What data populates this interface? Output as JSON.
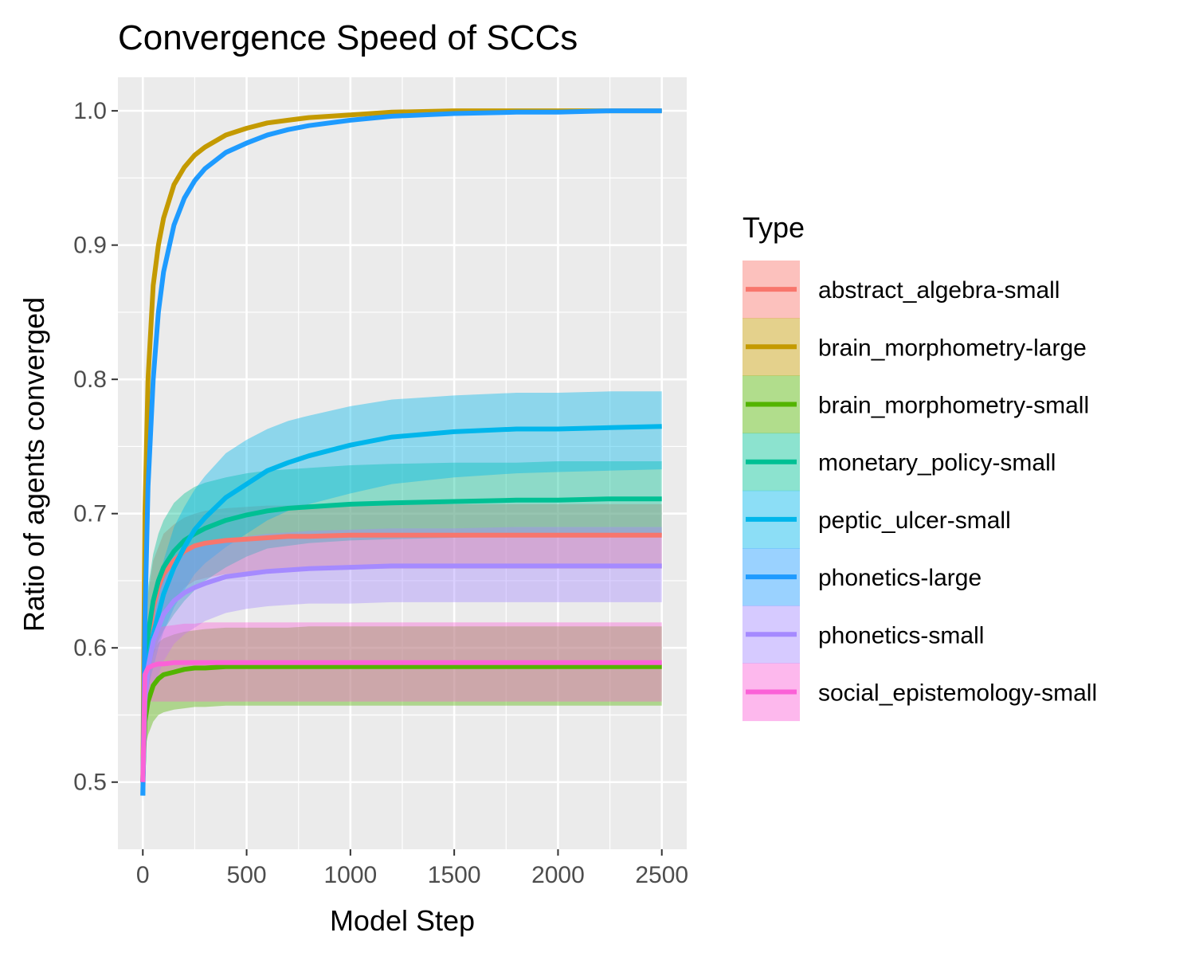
{
  "chart_data": {
    "type": "line",
    "title": "Convergence Speed of SCCs",
    "xlabel": "Model Step",
    "ylabel": "Ratio of agents converged",
    "xlim": [
      -120,
      2620
    ],
    "ylim": [
      0.45,
      1.025
    ],
    "x_ticks": [
      0,
      500,
      1000,
      1500,
      2000,
      2500
    ],
    "y_ticks": [
      0.5,
      0.6,
      0.7,
      0.8,
      0.9,
      1.0
    ],
    "x_tick_labels": [
      "0",
      "500",
      "1000",
      "1500",
      "2000",
      "2500"
    ],
    "y_tick_labels": [
      "0.5",
      "0.6",
      "0.7",
      "0.8",
      "0.9",
      "1.0"
    ],
    "grid": true,
    "legend_title": "Type",
    "legend_position": "right",
    "x": [
      0,
      10,
      25,
      50,
      75,
      100,
      150,
      200,
      250,
      300,
      400,
      500,
      600,
      700,
      800,
      1000,
      1200,
      1500,
      1800,
      2000,
      2250,
      2500
    ],
    "series": [
      {
        "name": "abstract_algebra-small",
        "color": "#F8766D",
        "values": [
          0.5,
          0.57,
          0.6,
          0.63,
          0.645,
          0.655,
          0.665,
          0.672,
          0.676,
          0.678,
          0.68,
          0.681,
          0.682,
          0.683,
          0.683,
          0.684,
          0.684,
          0.684,
          0.684,
          0.684,
          0.684,
          0.684
        ],
        "lower": [
          0.49,
          0.53,
          0.56,
          0.6,
          0.615,
          0.625,
          0.635,
          0.645,
          0.65,
          0.652,
          0.655,
          0.656,
          0.657,
          0.658,
          0.658,
          0.659,
          0.659,
          0.659,
          0.659,
          0.659,
          0.659,
          0.659
        ],
        "upper": [
          0.51,
          0.6,
          0.64,
          0.665,
          0.675,
          0.685,
          0.692,
          0.697,
          0.7,
          0.702,
          0.704,
          0.705,
          0.706,
          0.706,
          0.707,
          0.707,
          0.707,
          0.707,
          0.707,
          0.707,
          0.707,
          0.707
        ]
      },
      {
        "name": "brain_morphometry-large",
        "color": "#C49A00",
        "values": [
          0.5,
          0.7,
          0.8,
          0.87,
          0.9,
          0.92,
          0.945,
          0.958,
          0.967,
          0.973,
          0.982,
          0.987,
          0.991,
          0.993,
          0.995,
          0.997,
          0.999,
          1.0,
          1.0,
          1.0,
          1.0,
          1.0
        ],
        "lower": [
          0.495,
          0.695,
          0.795,
          0.866,
          0.897,
          0.917,
          0.943,
          0.956,
          0.965,
          0.971,
          0.981,
          0.986,
          0.99,
          0.992,
          0.994,
          0.996,
          0.998,
          0.999,
          0.999,
          0.999,
          0.999,
          0.999
        ],
        "upper": [
          0.505,
          0.705,
          0.805,
          0.874,
          0.903,
          0.923,
          0.947,
          0.96,
          0.969,
          0.975,
          0.983,
          0.988,
          0.992,
          0.994,
          0.996,
          0.998,
          1.0,
          1.001,
          1.001,
          1.001,
          1.001,
          1.001
        ]
      },
      {
        "name": "brain_morphometry-small",
        "color": "#53B400",
        "values": [
          0.5,
          0.545,
          0.56,
          0.572,
          0.577,
          0.58,
          0.582,
          0.584,
          0.585,
          0.585,
          0.586,
          0.586,
          0.586,
          0.586,
          0.586,
          0.586,
          0.586,
          0.586,
          0.586,
          0.586,
          0.586,
          0.586
        ],
        "lower": [
          0.49,
          0.525,
          0.535,
          0.545,
          0.55,
          0.552,
          0.554,
          0.555,
          0.556,
          0.556,
          0.557,
          0.557,
          0.557,
          0.557,
          0.557,
          0.557,
          0.557,
          0.557,
          0.557,
          0.557,
          0.557,
          0.557
        ],
        "upper": [
          0.51,
          0.57,
          0.585,
          0.597,
          0.604,
          0.607,
          0.61,
          0.612,
          0.613,
          0.614,
          0.615,
          0.615,
          0.615,
          0.615,
          0.616,
          0.616,
          0.616,
          0.616,
          0.616,
          0.616,
          0.616,
          0.616
        ]
      },
      {
        "name": "monetary_policy-small",
        "color": "#00C094",
        "values": [
          0.5,
          0.58,
          0.61,
          0.635,
          0.65,
          0.66,
          0.672,
          0.68,
          0.685,
          0.689,
          0.695,
          0.699,
          0.702,
          0.704,
          0.705,
          0.707,
          0.708,
          0.709,
          0.71,
          0.71,
          0.711,
          0.711
        ],
        "lower": [
          0.49,
          0.55,
          0.575,
          0.595,
          0.605,
          0.613,
          0.625,
          0.635,
          0.643,
          0.65,
          0.66,
          0.668,
          0.674,
          0.676,
          0.678,
          0.68,
          0.681,
          0.682,
          0.683,
          0.683,
          0.684,
          0.684
        ],
        "upper": [
          0.51,
          0.61,
          0.645,
          0.67,
          0.685,
          0.695,
          0.708,
          0.715,
          0.72,
          0.723,
          0.727,
          0.73,
          0.732,
          0.733,
          0.734,
          0.736,
          0.737,
          0.738,
          0.738,
          0.739,
          0.739,
          0.739
        ]
      },
      {
        "name": "peptic_ulcer-small",
        "color": "#00B6EB",
        "values": [
          0.49,
          0.57,
          0.59,
          0.61,
          0.625,
          0.64,
          0.66,
          0.675,
          0.688,
          0.697,
          0.712,
          0.722,
          0.732,
          0.738,
          0.743,
          0.751,
          0.757,
          0.761,
          0.763,
          0.763,
          0.764,
          0.765
        ],
        "lower": [
          0.485,
          0.55,
          0.57,
          0.585,
          0.6,
          0.612,
          0.63,
          0.643,
          0.655,
          0.663,
          0.675,
          0.685,
          0.695,
          0.702,
          0.707,
          0.715,
          0.722,
          0.727,
          0.73,
          0.731,
          0.732,
          0.733
        ],
        "upper": [
          0.495,
          0.59,
          0.61,
          0.635,
          0.65,
          0.665,
          0.69,
          0.705,
          0.718,
          0.728,
          0.745,
          0.755,
          0.763,
          0.769,
          0.773,
          0.78,
          0.785,
          0.788,
          0.79,
          0.79,
          0.791,
          0.791
        ]
      },
      {
        "name": "phonetics-large",
        "color": "#1E9BFF",
        "values": [
          0.49,
          0.62,
          0.72,
          0.8,
          0.85,
          0.88,
          0.915,
          0.935,
          0.948,
          0.957,
          0.969,
          0.976,
          0.982,
          0.986,
          0.989,
          0.993,
          0.996,
          0.998,
          0.999,
          0.999,
          1.0,
          1.0
        ],
        "lower": [
          0.485,
          0.615,
          0.715,
          0.796,
          0.846,
          0.876,
          0.912,
          0.932,
          0.945,
          0.955,
          0.967,
          0.974,
          0.98,
          0.985,
          0.988,
          0.992,
          0.995,
          0.997,
          0.998,
          0.998,
          0.999,
          0.999
        ],
        "upper": [
          0.495,
          0.625,
          0.725,
          0.804,
          0.854,
          0.884,
          0.918,
          0.938,
          0.951,
          0.959,
          0.971,
          0.978,
          0.984,
          0.987,
          0.99,
          0.994,
          0.997,
          0.999,
          1.0,
          1.0,
          1.001,
          1.001
        ]
      },
      {
        "name": "phonetics-small",
        "color": "#A58AFF",
        "values": [
          0.5,
          0.56,
          0.585,
          0.605,
          0.615,
          0.625,
          0.635,
          0.641,
          0.645,
          0.648,
          0.653,
          0.655,
          0.657,
          0.658,
          0.659,
          0.66,
          0.661,
          0.661,
          0.661,
          0.661,
          0.661,
          0.661
        ],
        "lower": [
          0.49,
          0.53,
          0.55,
          0.57,
          0.58,
          0.59,
          0.603,
          0.61,
          0.615,
          0.62,
          0.626,
          0.629,
          0.631,
          0.632,
          0.633,
          0.633,
          0.634,
          0.634,
          0.634,
          0.634,
          0.634,
          0.634
        ],
        "upper": [
          0.51,
          0.59,
          0.62,
          0.64,
          0.65,
          0.66,
          0.668,
          0.672,
          0.675,
          0.678,
          0.681,
          0.683,
          0.685,
          0.686,
          0.687,
          0.688,
          0.689,
          0.689,
          0.69,
          0.69,
          0.69,
          0.69
        ]
      },
      {
        "name": "social_epistemology-small",
        "color": "#FB61D7",
        "values": [
          0.5,
          0.58,
          0.585,
          0.587,
          0.588,
          0.588,
          0.589,
          0.589,
          0.589,
          0.589,
          0.589,
          0.589,
          0.589,
          0.589,
          0.589,
          0.589,
          0.589,
          0.589,
          0.589,
          0.589,
          0.589,
          0.589
        ],
        "lower": [
          0.49,
          0.555,
          0.56,
          0.56,
          0.56,
          0.56,
          0.56,
          0.56,
          0.56,
          0.56,
          0.56,
          0.56,
          0.56,
          0.56,
          0.56,
          0.56,
          0.56,
          0.56,
          0.56,
          0.56,
          0.56,
          0.56
        ],
        "upper": [
          0.51,
          0.605,
          0.61,
          0.613,
          0.615,
          0.616,
          0.617,
          0.618,
          0.618,
          0.619,
          0.619,
          0.619,
          0.619,
          0.619,
          0.619,
          0.619,
          0.619,
          0.619,
          0.619,
          0.619,
          0.619,
          0.619
        ]
      }
    ]
  }
}
